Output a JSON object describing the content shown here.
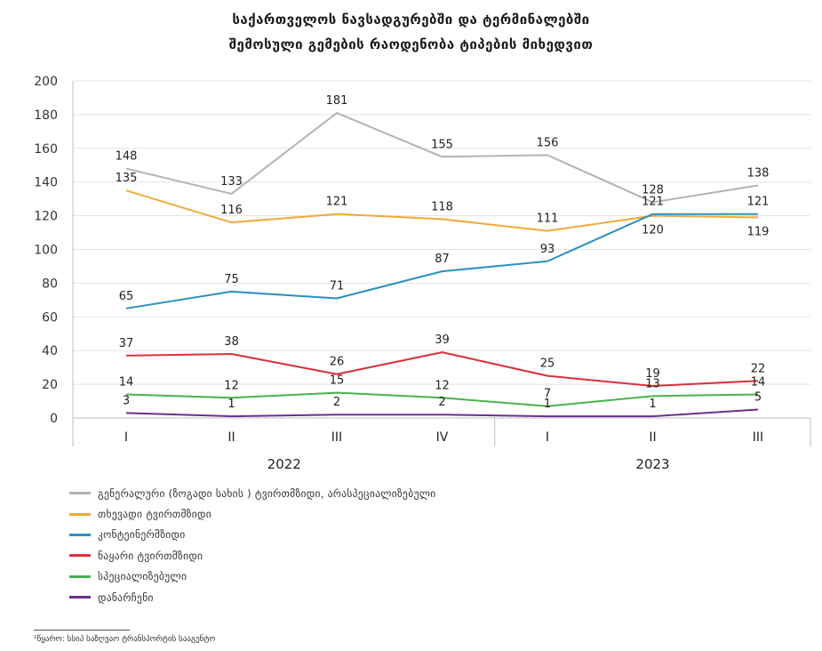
{
  "title": {
    "line1": "საქართველოს ნავსადგურებში და ტერმინალებში",
    "line2": "შემოსული გემების რაოდენობა ტიპების მიხედვით"
  },
  "chart_data": {
    "type": "line",
    "title": "საქართველოს ნავსადგურებში და ტერმინალებში შემოსული გემების რაოდენობა ტიპების მიხედვით",
    "categories": [
      "I",
      "II",
      "III",
      "IV",
      "I",
      "II",
      "III"
    ],
    "groups": [
      {
        "label": "2022",
        "count": 4
      },
      {
        "label": "2023",
        "count": 3
      }
    ],
    "ylim": [
      0,
      200
    ],
    "yticks": [
      0,
      20,
      40,
      60,
      80,
      100,
      120,
      140,
      160,
      180,
      200
    ],
    "grid": true,
    "legend_position": "bottom-left",
    "series": [
      {
        "name": "გენერალური (ზოგადი სახის ) ტვირთმზიდი, არასპეციალიზებული",
        "color": "#b3b3b3",
        "values": [
          148,
          133,
          181,
          155,
          156,
          128,
          138
        ],
        "label_pos": [
          "above",
          "above",
          "above",
          "above",
          "above",
          "above",
          "above"
        ]
      },
      {
        "name": "თხევადი ტვირთმზიდი",
        "color": "#f0a93b",
        "values": [
          135,
          116,
          121,
          118,
          111,
          120,
          119
        ],
        "label_pos": [
          "above",
          "above",
          "above",
          "above",
          "above",
          "below",
          "below"
        ]
      },
      {
        "name": "კონტეინერმზიდი",
        "color": "#2b8fbf",
        "values": [
          65,
          75,
          71,
          87,
          93,
          121,
          121
        ],
        "label_pos": [
          "above",
          "above",
          "above",
          "above",
          "above",
          "above",
          "above"
        ]
      },
      {
        "name": "ნაყარი ტვირთმზიდი",
        "color": "#d9313a",
        "values": [
          37,
          38,
          26,
          39,
          25,
          19,
          22
        ],
        "label_pos": [
          "above",
          "above",
          "above",
          "above",
          "above",
          "above",
          "above"
        ]
      },
      {
        "name": "სპეციალიზებული",
        "color": "#4bb14f",
        "values": [
          14,
          12,
          15,
          12,
          7,
          13,
          14
        ],
        "label_pos": [
          "above",
          "above",
          "above",
          "above",
          "above",
          "above",
          "above"
        ]
      },
      {
        "name": "დანარჩენი",
        "color": "#6a2f8f",
        "values": [
          3,
          1,
          2,
          2,
          1,
          1,
          5
        ],
        "label_pos": [
          "above",
          "above",
          "above",
          "above",
          "above",
          "above",
          "above"
        ]
      }
    ]
  },
  "footnote": "¹წყარო: სსიპ საზღვაო ტრანსპორტის სააგენტო"
}
